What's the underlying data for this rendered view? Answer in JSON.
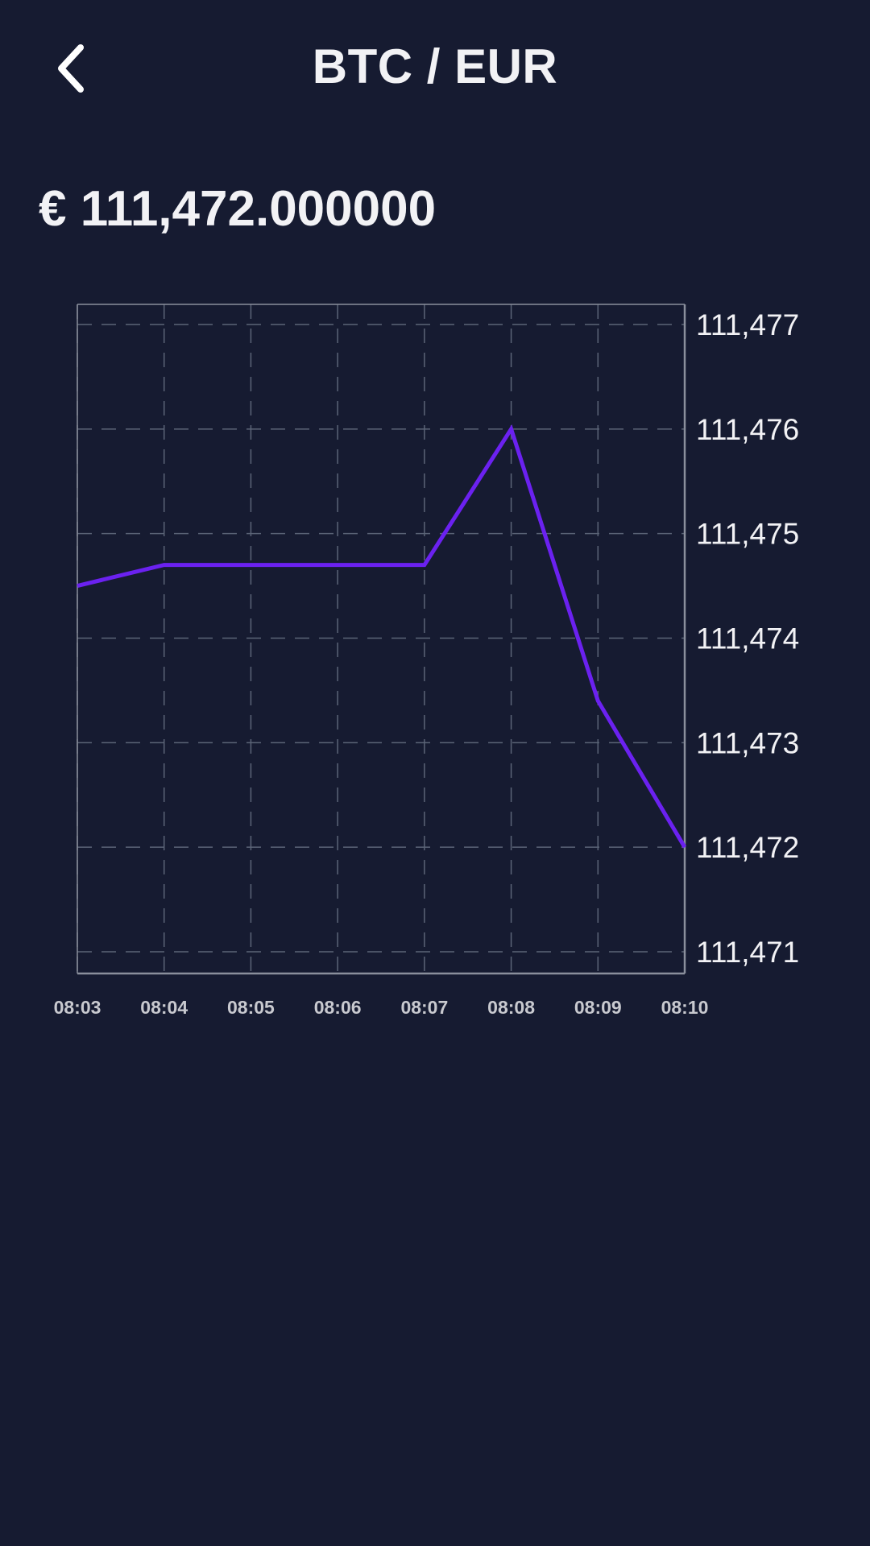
{
  "header": {
    "title": "BTC / EUR",
    "back_icon": "chevron-left-icon"
  },
  "price": {
    "display": "€ 111,472.000000"
  },
  "colors": {
    "background": "#161b31",
    "line": "#6b21f0",
    "text": "#f2f2f5",
    "grid": "#5b6477",
    "axis": "#8a8f9c",
    "x_tick_text": "#c8c9cf"
  },
  "chart_data": {
    "type": "line",
    "title": "",
    "xlabel": "",
    "ylabel": "",
    "x": [
      "08:03",
      "08:04",
      "08:05",
      "08:06",
      "08:07",
      "08:08",
      "08:09",
      "08:10"
    ],
    "series": [
      {
        "values": [
          111474.5,
          111474.7,
          111474.7,
          111474.7,
          111474.7,
          111476.0,
          111473.4,
          111472.0
        ]
      }
    ],
    "y_ticks": [
      "111,477",
      "111,476",
      "111,475",
      "111,474",
      "111,473",
      "111,472",
      "111,471"
    ],
    "y_tick_values": [
      111477,
      111476,
      111475,
      111474,
      111473,
      111472,
      111471
    ],
    "ylim": [
      110470.8,
      111477.2
    ],
    "y_axis_position": "right",
    "grid": true,
    "grid_style": "dashed",
    "legend": "none"
  }
}
